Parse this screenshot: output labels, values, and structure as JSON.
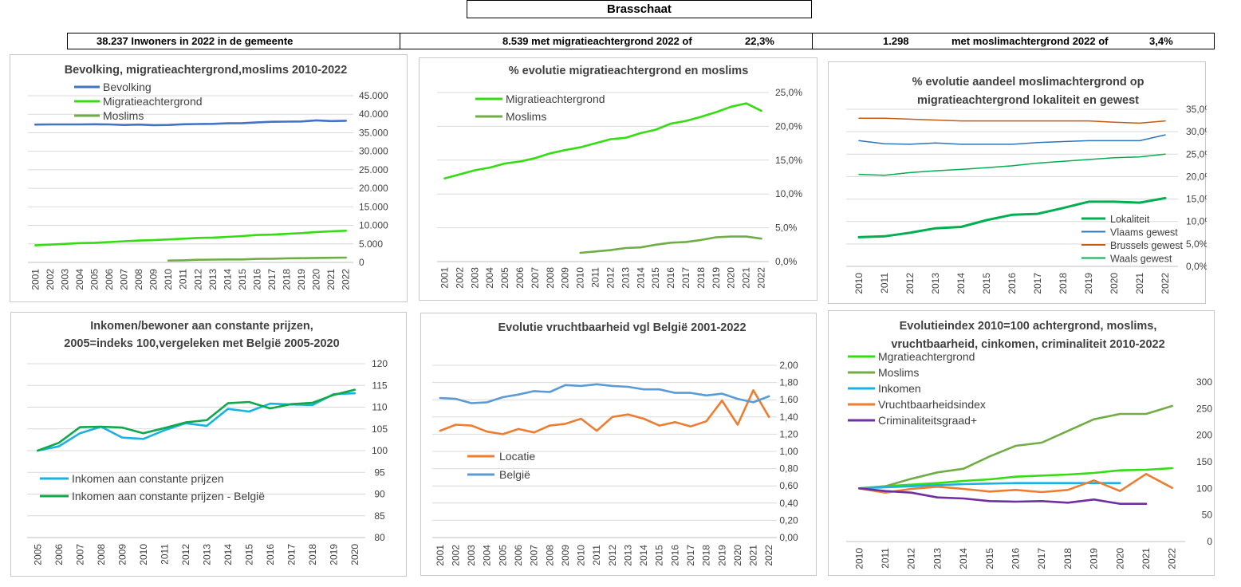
{
  "page_title": "Brasschaat",
  "stats": {
    "inwoners": "38.237 Inwoners in 2022 in de gemeente",
    "migratie_count": "8.539 met migratieachtergrond 2022 of",
    "migratie_pct": "22,3%",
    "moslim_count": "1.298",
    "moslim_label": "met moslimachtergrond 2022 of",
    "moslim_pct": "3,4%"
  },
  "colors": {
    "blue": "#4472c4",
    "bright_green": "#33dd11",
    "olive_green": "#70ad47",
    "dark_green": "#00b050",
    "orange_brown": "#c55a11",
    "steel_blue": "#2e75b6",
    "teal_green": "#00b050",
    "cyan": "#1ab2e0",
    "emerald": "#10a84a",
    "orange": "#ed7d31",
    "sky_blue": "#5b9bd5",
    "purple": "#7030a0"
  },
  "chart_data": [
    {
      "id": "c1",
      "type": "line",
      "title": "Bevolking, migratieachtergrond,moslims  2010-2022",
      "x": [
        "2001",
        "2002",
        "2003",
        "2004",
        "2005",
        "2006",
        "2007",
        "2008",
        "2009",
        "2010",
        "2011",
        "2012",
        "2013",
        "2014",
        "2015",
        "2016",
        "2017",
        "2018",
        "2019",
        "2020",
        "2021",
        "2022"
      ],
      "ylim": [
        0,
        45000
      ],
      "yticks": [
        "0",
        "5.000",
        "10.000",
        "15.000",
        "20.000",
        "25.000",
        "30.000",
        "35.000",
        "40.000",
        "45.000"
      ],
      "grid": true,
      "legend_position": "top-left",
      "series": [
        {
          "name": "Bevolking",
          "color": "#4472c4",
          "values": [
            37200,
            37250,
            37250,
            37250,
            37300,
            37250,
            37100,
            37200,
            37050,
            37100,
            37300,
            37350,
            37400,
            37550,
            37600,
            37800,
            37950,
            38000,
            38050,
            38350,
            38150,
            38237
          ]
        },
        {
          "name": "Migratieachtergrond",
          "color": "#33dd11",
          "values": [
            4600,
            4800,
            5000,
            5200,
            5300,
            5500,
            5700,
            5900,
            6000,
            6200,
            6400,
            6600,
            6700,
            6900,
            7100,
            7400,
            7500,
            7700,
            7900,
            8200,
            8400,
            8539
          ]
        },
        {
          "name": "Moslims",
          "color": "#70ad47",
          "values": [
            null,
            null,
            null,
            null,
            null,
            null,
            null,
            null,
            null,
            500,
            550,
            700,
            750,
            800,
            800,
            950,
            1000,
            1100,
            1150,
            1200,
            1250,
            1298
          ]
        }
      ]
    },
    {
      "id": "c2",
      "type": "line",
      "title": "% evolutie migratieachtergrond  en moslims",
      "x": [
        "2001",
        "2002",
        "2003",
        "2004",
        "2005",
        "2006",
        "2007",
        "2008",
        "2009",
        "2010",
        "2011",
        "2012",
        "2013",
        "2014",
        "2015",
        "2016",
        "2017",
        "2018",
        "2019",
        "2020",
        "2021",
        "2022"
      ],
      "ylim": [
        0,
        25
      ],
      "yticks": [
        "0,0%",
        "5,0%",
        "10,0%",
        "15,0%",
        "20,0%",
        "25,0%"
      ],
      "grid": true,
      "legend_position": "top-left",
      "series": [
        {
          "name": "Migratieachtergrond",
          "color": "#33dd11",
          "values": [
            12.3,
            12.9,
            13.5,
            13.9,
            14.5,
            14.8,
            15.3,
            16.0,
            16.5,
            16.9,
            17.5,
            18.1,
            18.3,
            19.0,
            19.5,
            20.4,
            20.8,
            21.4,
            22.1,
            22.9,
            23.4,
            22.3
          ]
        },
        {
          "name": "Moslims",
          "color": "#70ad47",
          "values": [
            null,
            null,
            null,
            null,
            null,
            null,
            null,
            null,
            null,
            1.3,
            1.5,
            1.7,
            2.0,
            2.1,
            2.5,
            2.8,
            2.9,
            3.2,
            3.6,
            3.7,
            3.7,
            3.4
          ]
        }
      ]
    },
    {
      "id": "c3",
      "type": "line",
      "title": "% evolutie aandeel moslimachtergrond op migratieachtergrond lokaliteit  en gewest",
      "title_lines": [
        "% evolutie aandeel moslimachtergrond op",
        "migratieachtergrond lokaliteit  en gewest"
      ],
      "x": [
        "2010",
        "2011",
        "2012",
        "2013",
        "2014",
        "2015",
        "2016",
        "2017",
        "2018",
        "2019",
        "2020",
        "2021",
        "2022"
      ],
      "ylim": [
        0,
        35
      ],
      "yticks": [
        "0,0%",
        "5,0%",
        "10,0%",
        "15,0%",
        "20,0%",
        "25,0%",
        "30,0%",
        "35,0%"
      ],
      "grid": true,
      "legend_position": "bottom-right",
      "series": [
        {
          "name": "Lokaliteit",
          "color": "#00b050",
          "width": 3,
          "values": [
            6.5,
            6.7,
            7.5,
            8.5,
            8.8,
            10.3,
            11.5,
            11.7,
            13.0,
            14.4,
            14.4,
            14.2,
            15.2
          ]
        },
        {
          "name": "Vlaams gewest",
          "color": "#2e75b6",
          "width": 1.5,
          "values": [
            28.0,
            27.3,
            27.2,
            27.5,
            27.2,
            27.2,
            27.2,
            27.6,
            27.8,
            28.0,
            28.0,
            28.0,
            29.3
          ]
        },
        {
          "name": "Brussels gewest",
          "color": "#c55a11",
          "width": 1.5,
          "values": [
            33.0,
            33.0,
            32.8,
            32.6,
            32.4,
            32.4,
            32.4,
            32.4,
            32.4,
            32.4,
            32.1,
            31.9,
            32.4
          ]
        },
        {
          "name": "Waals gewest",
          "color": "#00b050",
          "width": 1.5,
          "values": [
            20.5,
            20.3,
            20.9,
            21.3,
            21.6,
            22.0,
            22.4,
            23.0,
            23.4,
            23.8,
            24.2,
            24.4,
            25.0
          ]
        }
      ]
    },
    {
      "id": "c4",
      "type": "line",
      "title": "Inkomen/bewoner aan constante prijzen, 2005=indeks 100,vergeleken met België 2005-2020",
      "title_lines": [
        "Inkomen/bewoner aan constante prijzen,",
        "2005=indeks 100,vergeleken met België 2005-2020"
      ],
      "x": [
        "2005",
        "2006",
        "2007",
        "2008",
        "2009",
        "2010",
        "2011",
        "2012",
        "2013",
        "2014",
        "2015",
        "2016",
        "2017",
        "2018",
        "2019",
        "2020"
      ],
      "ylim": [
        80,
        120
      ],
      "yticks": [
        "80",
        "85",
        "90",
        "95",
        "100",
        "105",
        "110",
        "115",
        "120"
      ],
      "grid": true,
      "legend_position": "bottom-left",
      "series": [
        {
          "name": "Inkomen aan constante prijzen",
          "color": "#1ab2e0",
          "values": [
            100,
            101,
            104,
            105.5,
            103,
            102.7,
            104.7,
            106.3,
            105.7,
            109.6,
            109.0,
            110.8,
            110.6,
            110.5,
            113.0,
            113.2
          ]
        },
        {
          "name": "Inkomen aan constante prijzen - België",
          "color": "#10a84a",
          "values": [
            100,
            101.8,
            105.4,
            105.5,
            105.3,
            104.0,
            105.2,
            106.5,
            107.0,
            110.9,
            111.2,
            109.7,
            110.7,
            111.0,
            112.8,
            114.0
          ]
        }
      ]
    },
    {
      "id": "c5",
      "type": "line",
      "title": "Evolutie vruchtbaarheid vgl België 2001-2022",
      "x": [
        "2001",
        "2002",
        "2003",
        "2004",
        "2005",
        "2006",
        "2007",
        "2008",
        "2009",
        "2010",
        "2011",
        "2012",
        "2013",
        "2014",
        "2015",
        "2016",
        "2017",
        "2018",
        "2019",
        "2020",
        "2021",
        "2022"
      ],
      "ylim": [
        0,
        2.0
      ],
      "yticks": [
        "0,00",
        "0,20",
        "0,40",
        "0,60",
        "0,80",
        "1,00",
        "1,20",
        "1,40",
        "1,60",
        "1,80",
        "2,00"
      ],
      "grid": true,
      "legend_position": "left",
      "series": [
        {
          "name": "Locatie",
          "color": "#ed7d31",
          "values": [
            1.24,
            1.31,
            1.3,
            1.23,
            1.2,
            1.26,
            1.22,
            1.3,
            1.32,
            1.38,
            1.24,
            1.4,
            1.43,
            1.38,
            1.3,
            1.34,
            1.29,
            1.35,
            1.59,
            1.31,
            1.71,
            1.4
          ]
        },
        {
          "name": "België",
          "color": "#5b9bd5",
          "values": [
            1.62,
            1.61,
            1.56,
            1.57,
            1.63,
            1.66,
            1.7,
            1.69,
            1.77,
            1.76,
            1.78,
            1.76,
            1.75,
            1.72,
            1.72,
            1.68,
            1.68,
            1.65,
            1.67,
            1.61,
            1.57,
            1.64
          ]
        }
      ]
    },
    {
      "id": "c6",
      "type": "line",
      "title": "Evolutieindex 2010=100 achtergrond, moslims, vruchtbaarheid, cinkomen, criminaliteit  2010-2022",
      "title_lines": [
        "Evolutieindex 2010=100 achtergrond, moslims,",
        "vruchtbaarheid, cinkomen, criminaliteit  2010-2022"
      ],
      "x": [
        "2010",
        "2011",
        "2012",
        "2013",
        "2014",
        "2015",
        "2016",
        "2017",
        "2018",
        "2019",
        "2020",
        "2021",
        "2022"
      ],
      "ylim": [
        0,
        300
      ],
      "yticks": [
        "0",
        "50",
        "100",
        "150",
        "200",
        "250",
        "300"
      ],
      "grid": false,
      "legend_position": "top-left",
      "series": [
        {
          "name": "Mgratieachtergrond",
          "color": "#33dd11",
          "values": [
            100,
            104,
            107,
            110,
            114,
            117,
            122,
            124,
            126,
            129,
            134,
            135,
            138
          ]
        },
        {
          "name": "Moslims",
          "color": "#70ad47",
          "values": [
            100,
            104,
            118,
            130,
            137,
            160,
            180,
            186,
            208,
            230,
            240,
            240,
            255
          ]
        },
        {
          "name": "Inkomen",
          "color": "#1ab2e0",
          "values": [
            100,
            102,
            104,
            106,
            108,
            109,
            110,
            110,
            110,
            110,
            110,
            null,
            null
          ]
        },
        {
          "name": "Vruchtbaarheidsindex",
          "color": "#ed7d31",
          "values": [
            100,
            92,
            99,
            103,
            99,
            94,
            97,
            93,
            97,
            115,
            95,
            127,
            101
          ]
        },
        {
          "name": "Criminaliteitsgraad+",
          "color": "#7030a0",
          "values": [
            100,
            95,
            92,
            83,
            81,
            76,
            75,
            76,
            73,
            79,
            71,
            71,
            null
          ]
        }
      ]
    }
  ]
}
